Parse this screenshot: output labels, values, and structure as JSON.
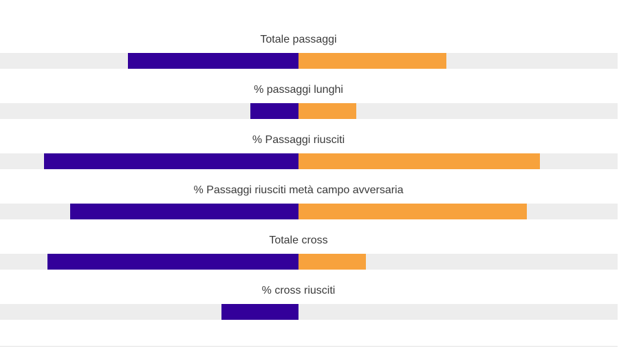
{
  "colors": {
    "left_series": "#33009a",
    "right_series": "#f7a23d",
    "track": "#ededed",
    "label_text": "#3a3a3a"
  },
  "chart_data": {
    "type": "bar",
    "orientation": "horizontal-diverging",
    "title": "",
    "xlabel": "",
    "ylabel": "",
    "grid": false,
    "legend": "none",
    "scale": "each stat scaled so the larger of the two sides equals 1; bars grow outward from a shared center axis",
    "categories": [
      "Totale passaggi",
      "% passaggi lunghi",
      "% Passaggi riusciti",
      "% Passaggi riusciti metà campo avversaria",
      "Totale cross",
      "% cross riusciti"
    ],
    "series": [
      {
        "side": "left",
        "color": "#33009a",
        "values": [
          0.53,
          0.15,
          0.79,
          0.71,
          0.78,
          0.24
        ]
      },
      {
        "side": "right",
        "color": "#f7a23d",
        "values": [
          0.46,
          0.18,
          0.75,
          0.71,
          0.21,
          0.0
        ]
      }
    ]
  }
}
